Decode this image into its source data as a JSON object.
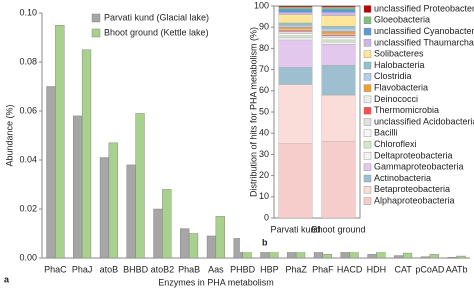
{
  "chart_data": [
    {
      "type": "bar",
      "panel_label": "a",
      "x_label": "Enzymes in PHA metabolism",
      "y_label": "Abundance (%)",
      "categories": [
        "PhaC",
        "PhaJ",
        "atoB",
        "BHBD",
        "atoB2",
        "PhaB",
        "Aas",
        "PHBD",
        "HBP",
        "PhaZ",
        "PhaF",
        "HACD",
        "HDH",
        "CAT",
        "pCoAD",
        "AATb"
      ],
      "series": [
        {
          "name": "Parvati kund (Glacial lake)",
          "color": "#a6a6a6",
          "values": [
            0.07,
            0.058,
            0.041,
            0.038,
            0.02,
            0.012,
            0.009,
            0.008,
            0.0055,
            0.005,
            0.003,
            0.0025,
            0.0015,
            0.001,
            0.0005,
            0.0003
          ]
        },
        {
          "name": "Bhoot ground (Kettle lake)",
          "color": "#a9d18e",
          "values": [
            0.095,
            0.085,
            0.047,
            0.059,
            0.028,
            0.01,
            0.017,
            0.009,
            0.0045,
            0.008,
            0.0015,
            0.0065,
            0.005,
            0.002,
            0.0015,
            0.0008
          ]
        }
      ],
      "ylim": [
        0,
        0.1
      ],
      "yticks": [
        {
          "value": 0,
          "label": "0.00"
        },
        {
          "value": 0.02,
          "label": "0.02"
        },
        {
          "value": 0.04,
          "label": "0.04"
        },
        {
          "value": 0.06,
          "label": "0.06"
        },
        {
          "value": 0.08,
          "label": "0.08"
        },
        {
          "value": 0.1,
          "label": "0.10"
        }
      ],
      "legend": "upper left"
    },
    {
      "type": "stacked_bar",
      "panel_label": "b",
      "y_label": "Distribution of hits for PHA metabolism (%)",
      "categories": [
        "Parvati kund",
        "Bhoot ground"
      ],
      "series": [
        {
          "name": "Alphaproteobacteria",
          "color": "#f6cdca",
          "values": [
            35,
            36
          ]
        },
        {
          "name": "Betaproteobacteria",
          "color": "#fadcd8",
          "values": [
            28,
            22
          ]
        },
        {
          "name": "Actinobacteria",
          "color": "#9dbfd0",
          "values": [
            8,
            14
          ]
        },
        {
          "name": "Gammaproteobacteria",
          "color": "#e3c8ee",
          "values": [
            13,
            10
          ]
        },
        {
          "name": "Deltaproteobacteria",
          "color": "#f3f3f3",
          "values": [
            1,
            1
          ]
        },
        {
          "name": "Chloroflexi",
          "color": "#d5e8c4",
          "values": [
            1,
            1
          ]
        },
        {
          "name": "Bacilli",
          "color": "#f7f7f7",
          "values": [
            1,
            1
          ]
        },
        {
          "name": "unclassified Acidobacteria",
          "color": "#e0e0e0",
          "values": [
            1,
            1
          ]
        },
        {
          "name": "Thermomicrobia",
          "color": "#ff4d4d",
          "values": [
            0.5,
            0.5
          ]
        },
        {
          "name": "Deinococci",
          "color": "#ededed",
          "values": [
            0.5,
            0.5
          ]
        },
        {
          "name": "Flavobacteria",
          "color": "#f0a030",
          "values": [
            1,
            1
          ]
        },
        {
          "name": "Clostridia",
          "color": "#b4cde8",
          "values": [
            1,
            1.5
          ]
        },
        {
          "name": "Halobacteria",
          "color": "#8fc2cf",
          "values": [
            1,
            1
          ]
        },
        {
          "name": "Solibacteres",
          "color": "#ffe699",
          "values": [
            4,
            5
          ]
        },
        {
          "name": "unclassified Thaumarchaeota",
          "color": "#cdb6e8",
          "values": [
            1,
            1.5
          ]
        },
        {
          "name": "unclassified Cyanobacteria",
          "color": "#5b9bd5",
          "values": [
            1.5,
            1.5
          ]
        },
        {
          "name": "Gloeobacteria",
          "color": "#7fbf7f",
          "values": [
            1,
            1
          ]
        },
        {
          "name": "unclassified Proteobacteria",
          "color": "#c00000",
          "values": [
            0.5,
            0.5
          ]
        }
      ],
      "ylim": [
        0,
        100
      ],
      "yticks": [
        0,
        10,
        20,
        30,
        40,
        50,
        60,
        70,
        80,
        90,
        100
      ]
    }
  ]
}
